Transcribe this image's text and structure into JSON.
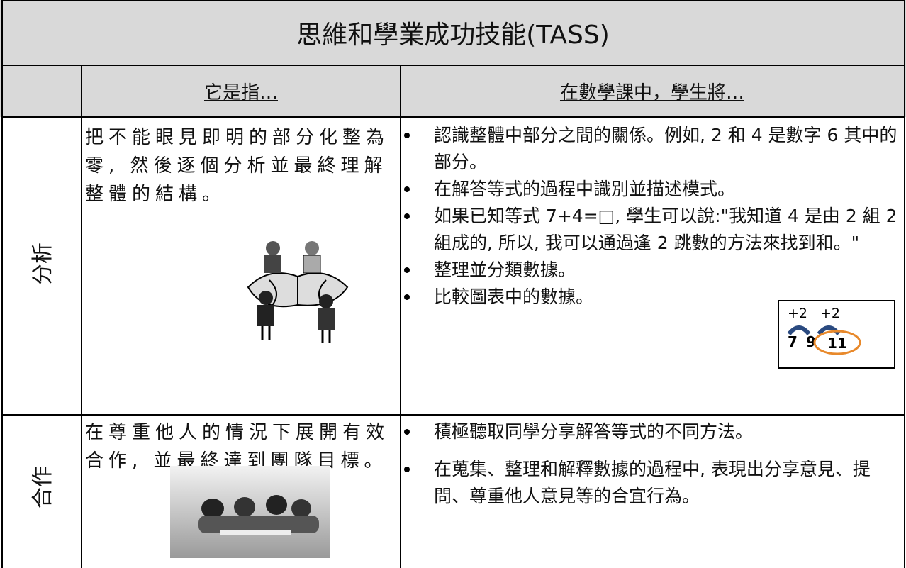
{
  "header": {
    "title": "思維和學業成功技能(TASS)"
  },
  "table": {
    "columns": [
      "它是指…",
      "在數學課中，學生將…"
    ],
    "rows": [
      {
        "label": "分析",
        "description": [
          "把不能眼見即明的部分化整為",
          "零, 然後逐個分析並最終理解",
          "整體的結構。"
        ],
        "bullets": [
          "認識整體中部分之間的關係。例如, 2 和 4 是數字 6 其中的部分。",
          "在解答等式的過程中識別並描述模式。",
          " 如果已知等式 7+4=□, 學生可以說:\"我知道 4 是由 2 組 2 組成的, 所以, 我可以通過逢 2 跳數的方法來找到和。\"",
          "整理並分類數據。",
          "比較圖表中的數據。"
        ],
        "inset": {
          "jumps": [
            "+2",
            "+2"
          ],
          "numbers": [
            "7",
            "9",
            "11"
          ]
        }
      },
      {
        "label": "合作",
        "description": [
          "在尊重他人的情況下展開有效",
          "合作, 並最終達到團隊目標。"
        ],
        "bullets": [
          "積極聽取同學分享解答等式的不同方法。",
          "在蒐集、整理和解釋數據的過程中, 表現出分享意見、提問、尊重他人意見等的合宜行為。"
        ]
      }
    ]
  }
}
